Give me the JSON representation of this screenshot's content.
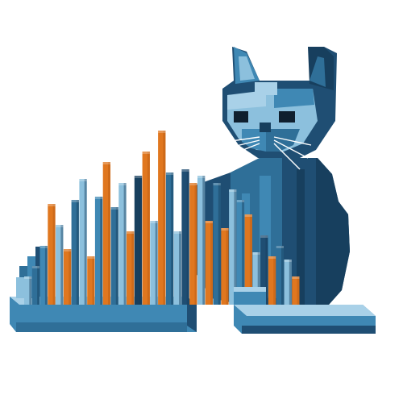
{
  "image": {
    "subject": "voxel-cat-bar-illustration",
    "colors": {
      "background": "#ffffff",
      "navy": "#1f4e73",
      "deep": "#173f5e",
      "blue": "#2f6f98",
      "mid": "#3f88b4",
      "light": "#8cc0dd",
      "pale": "#a9d1e8",
      "orange": "#e0771f",
      "orange_dark": "#b95c12",
      "eye": "#0f1f2e",
      "whisker": "#ffffff"
    },
    "bars": [
      {
        "color": "light",
        "level": 0.16
      },
      {
        "color": "blue",
        "level": 0.22
      },
      {
        "color": "mid",
        "level": 0.34
      },
      {
        "color": "orange",
        "level": 0.58
      },
      {
        "color": "light",
        "level": 0.46
      },
      {
        "color": "orange",
        "level": 0.32
      },
      {
        "color": "blue",
        "level": 0.6
      },
      {
        "color": "light",
        "level": 0.72
      },
      {
        "color": "orange",
        "level": 0.28
      },
      {
        "color": "mid",
        "level": 0.62
      },
      {
        "color": "orange",
        "level": 0.82
      },
      {
        "color": "blue",
        "level": 0.56
      },
      {
        "color": "light",
        "level": 0.7
      },
      {
        "color": "orange",
        "level": 0.42
      },
      {
        "color": "deep",
        "level": 0.74
      },
      {
        "color": "orange",
        "level": 0.88
      },
      {
        "color": "light",
        "level": 0.48
      },
      {
        "color": "orange",
        "level": 1.0
      },
      {
        "color": "blue",
        "level": 0.76
      },
      {
        "color": "light",
        "level": 0.42
      },
      {
        "color": "navy",
        "level": 0.78
      },
      {
        "color": "orange",
        "level": 0.7
      },
      {
        "color": "light",
        "level": 0.74
      },
      {
        "color": "orange",
        "level": 0.48
      },
      {
        "color": "blue",
        "level": 0.7
      },
      {
        "color": "orange",
        "level": 0.44
      },
      {
        "color": "light",
        "level": 0.66
      },
      {
        "color": "mid",
        "level": 0.6
      },
      {
        "color": "orange",
        "level": 0.52
      },
      {
        "color": "light",
        "level": 0.3
      },
      {
        "color": "navy",
        "level": 0.4
      },
      {
        "color": "orange",
        "level": 0.28
      },
      {
        "color": "blue",
        "level": 0.34
      },
      {
        "color": "light",
        "level": 0.26
      },
      {
        "color": "orange",
        "level": 0.16
      }
    ]
  }
}
